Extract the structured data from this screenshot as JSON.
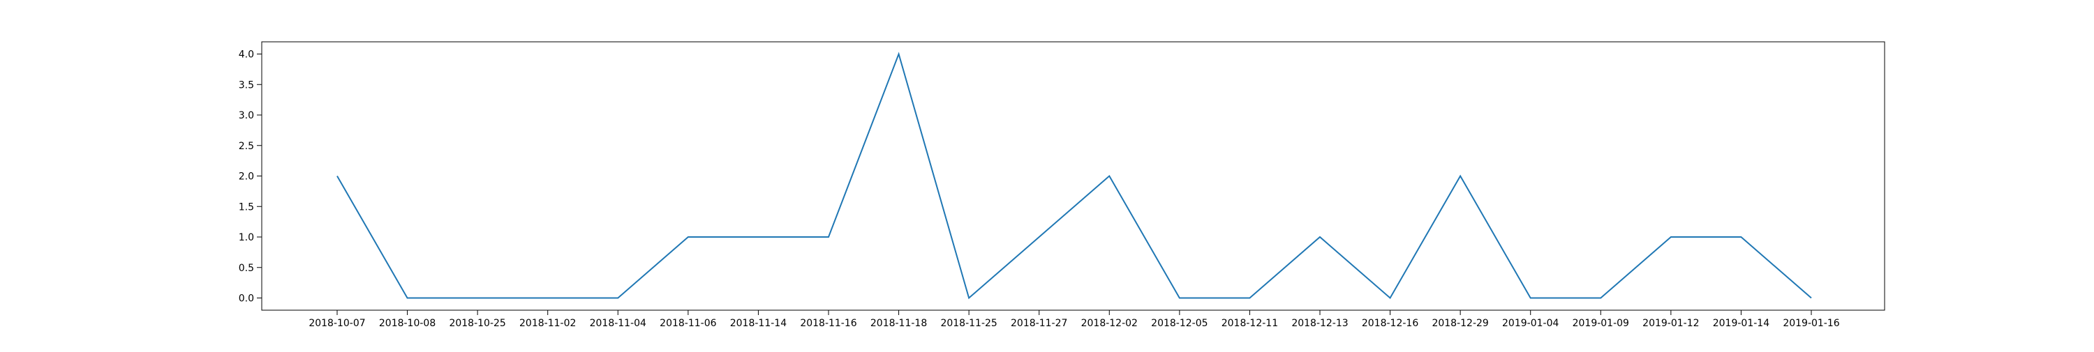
{
  "chart_data": {
    "type": "line",
    "title": "",
    "xlabel": "",
    "ylabel": "",
    "categories": [
      "2018-10-07",
      "2018-10-08",
      "2018-10-25",
      "2018-11-02",
      "2018-11-04",
      "2018-11-06",
      "2018-11-14",
      "2018-11-16",
      "2018-11-18",
      "2018-11-25",
      "2018-11-27",
      "2018-12-02",
      "2018-12-05",
      "2018-12-11",
      "2018-12-13",
      "2018-12-16",
      "2018-12-29",
      "2019-01-04",
      "2019-01-09",
      "2019-01-12",
      "2019-01-14",
      "2019-01-16"
    ],
    "series": [
      {
        "values": [
          2,
          0,
          0,
          0,
          0,
          1,
          1,
          1,
          4,
          0,
          1,
          2,
          0,
          0,
          1,
          0,
          2,
          0,
          0,
          1,
          1,
          0
        ],
        "color": "#1f77b4"
      }
    ],
    "ylim": [
      -0.2,
      4.2
    ],
    "yticks": [
      "0.0",
      "0.5",
      "1.0",
      "1.5",
      "2.0",
      "2.5",
      "3.0",
      "3.5",
      "4.0"
    ],
    "grid": false,
    "legend": "none"
  }
}
